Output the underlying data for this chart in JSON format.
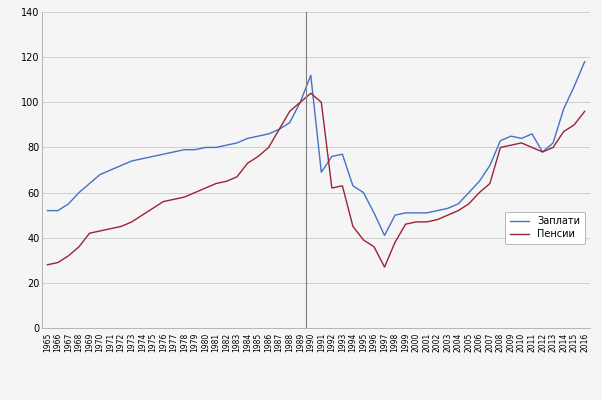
{
  "years": [
    1965,
    1966,
    1967,
    1968,
    1969,
    1970,
    1971,
    1972,
    1973,
    1974,
    1975,
    1976,
    1977,
    1978,
    1979,
    1980,
    1981,
    1982,
    1983,
    1984,
    1985,
    1986,
    1987,
    1988,
    1989,
    1990,
    1991,
    1992,
    1993,
    1994,
    1995,
    1996,
    1997,
    1998,
    1999,
    2000,
    2001,
    2002,
    2003,
    2004,
    2005,
    2006,
    2007,
    2008,
    2009,
    2010,
    2011,
    2012,
    2013,
    2014,
    2015,
    2016
  ],
  "wages": [
    52,
    52,
    55,
    60,
    64,
    68,
    70,
    72,
    74,
    75,
    76,
    77,
    78,
    79,
    79,
    80,
    80,
    81,
    82,
    84,
    85,
    86,
    88,
    91,
    100,
    112,
    69,
    76,
    77,
    63,
    60,
    51,
    41,
    50,
    51,
    51,
    51,
    52,
    53,
    55,
    60,
    65,
    72,
    83,
    85,
    84,
    86,
    78,
    82,
    97,
    107,
    118
  ],
  "pensions": [
    28,
    29,
    32,
    36,
    42,
    43,
    44,
    45,
    47,
    50,
    53,
    56,
    57,
    58,
    60,
    62,
    64,
    65,
    67,
    73,
    76,
    80,
    88,
    96,
    100,
    104,
    100,
    62,
    63,
    45,
    39,
    36,
    27,
    38,
    46,
    47,
    47,
    48,
    50,
    52,
    55,
    60,
    64,
    80,
    81,
    82,
    80,
    78,
    80,
    87,
    90,
    96
  ],
  "vline_x": 1989.5,
  "ylim": [
    0,
    140
  ],
  "yticks": [
    0,
    20,
    40,
    60,
    80,
    100,
    120,
    140
  ],
  "wages_color": "#4472c4",
  "pensions_color": "#9b2335",
  "grid_color": "#c8c8c8",
  "vline_color": "#808080",
  "legend_wages": "Заплати",
  "legend_pensions": "Пенсии",
  "background_color": "#f5f5f5",
  "plot_bg_color": "#f5f5f5"
}
